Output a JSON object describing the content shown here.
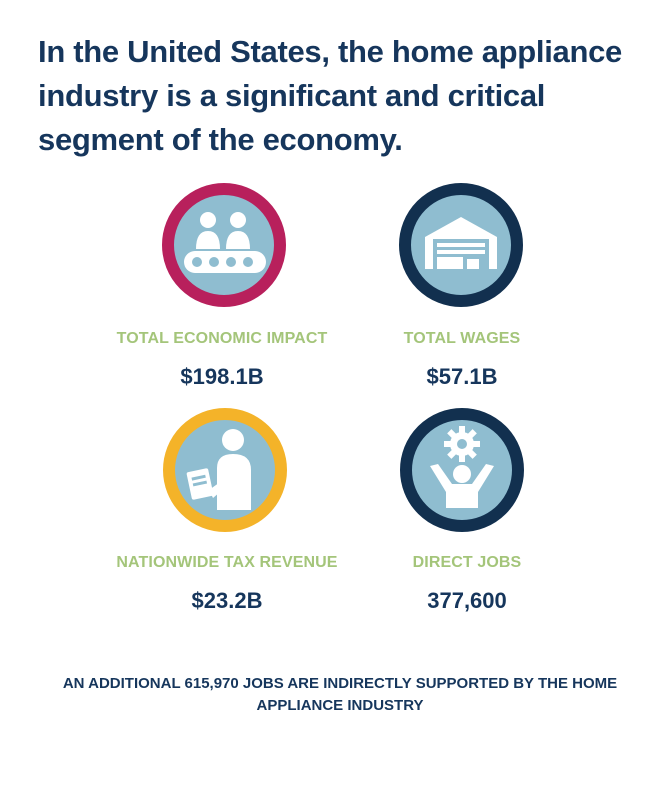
{
  "headline": "In the United States, the home appliance industry is a significant and critical segment of the economy.",
  "colors": {
    "headline": "#16365c",
    "label": "#a4c57a",
    "value": "#16365c",
    "icon_fill": "#8fbdd0",
    "ring_magenta": "#b8205c",
    "ring_navy": "#12304f",
    "ring_gold": "#f4b329"
  },
  "stats": [
    {
      "label": "TOTAL ECONOMIC IMPACT",
      "value": "$198.1B",
      "icon": "conveyor-workers-icon",
      "ring_color": "#b8205c"
    },
    {
      "label": "TOTAL WAGES",
      "value": "$57.1B",
      "icon": "warehouse-icon",
      "ring_color": "#12304f"
    },
    {
      "label": "NATIONWIDE TAX REVENUE",
      "value": "$23.2B",
      "icon": "person-document-icon",
      "ring_color": "#f4b329"
    },
    {
      "label": "DIRECT JOBS",
      "value": "377,600",
      "icon": "person-gear-icon",
      "ring_color": "#12304f"
    }
  ],
  "footnote": "AN ADDITIONAL 615,970 JOBS ARE INDIRECTLY SUPPORTED BY THE HOME APPLIANCE INDUSTRY"
}
